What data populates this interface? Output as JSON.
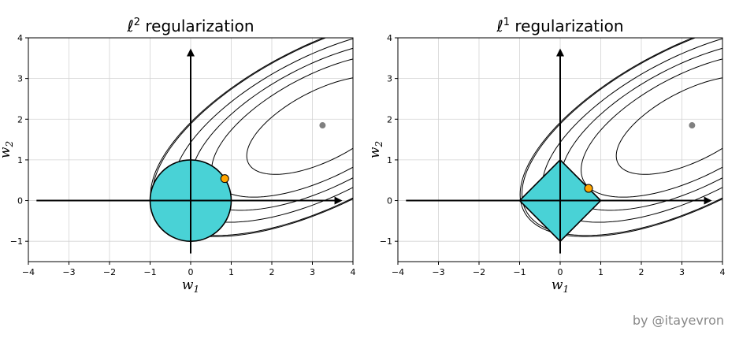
{
  "credit": "by @itayevron",
  "colors": {
    "region_fill": "#49d2d6",
    "optimum_point": "#ffa500",
    "unconstrained_minimum": "#808080",
    "contour": "#000000",
    "grid": "#d3d3d3"
  },
  "chart_data": [
    {
      "type": "contour",
      "title": "ℓ² regularization",
      "title_parts": {
        "base": "ℓ",
        "sup": "2",
        "rest": " regularization"
      },
      "xlabel": "w₁",
      "ylabel": "w₂",
      "xlabel_parts": {
        "base": "w",
        "sub": "1"
      },
      "ylabel_parts": {
        "base": "w",
        "sub": "2"
      },
      "xlim": [
        -4,
        4
      ],
      "ylim": [
        -1.5,
        4
      ],
      "xticks": [
        "−4",
        "−3",
        "−2",
        "−1",
        "0",
        "1",
        "2",
        "3",
        "4"
      ],
      "yticks": [
        "−1",
        "0",
        "1",
        "2",
        "3",
        "4"
      ],
      "grid": true,
      "constraint": {
        "shape": "circle",
        "center": [
          0,
          0
        ],
        "radius": 1
      },
      "solution_point": [
        0.84,
        0.54
      ],
      "unconstrained_minimum": [
        3.25,
        1.85
      ],
      "contours": {
        "center": [
          3.25,
          1.85
        ],
        "angle_deg": 27,
        "axis_ratio": 0.42,
        "semi_major_axes": [
          2.05,
          3.0,
          3.55,
          4.05,
          4.6,
          4.65
        ]
      },
      "arrows": {
        "x_axis": [
          -3.8,
          3.7
        ],
        "y_axis": [
          -1.3,
          3.7
        ]
      }
    },
    {
      "type": "contour",
      "title": "ℓ¹ regularization",
      "title_parts": {
        "base": "ℓ",
        "sup": "1",
        "rest": " regularization"
      },
      "xlabel": "w₁",
      "ylabel": "w₂",
      "xlabel_parts": {
        "base": "w",
        "sub": "1"
      },
      "ylabel_parts": {
        "base": "w",
        "sub": "2"
      },
      "xlim": [
        -4,
        4
      ],
      "ylim": [
        -1.5,
        4
      ],
      "xticks": [
        "−4",
        "−3",
        "−2",
        "−1",
        "0",
        "1",
        "2",
        "3",
        "4"
      ],
      "yticks": [
        "−1",
        "0",
        "1",
        "2",
        "3",
        "4"
      ],
      "grid": true,
      "constraint": {
        "shape": "diamond",
        "center": [
          0,
          0
        ],
        "radius": 1
      },
      "solution_point": [
        0.7,
        0.3
      ],
      "unconstrained_minimum": [
        3.25,
        1.85
      ],
      "contours": {
        "center": [
          3.25,
          1.85
        ],
        "angle_deg": 27,
        "axis_ratio": 0.42,
        "semi_major_axes": [
          2.05,
          3.0,
          3.55,
          4.05,
          4.6,
          4.65
        ]
      },
      "arrows": {
        "x_axis": [
          -3.8,
          3.7
        ],
        "y_axis": [
          -1.3,
          3.7
        ]
      }
    }
  ]
}
